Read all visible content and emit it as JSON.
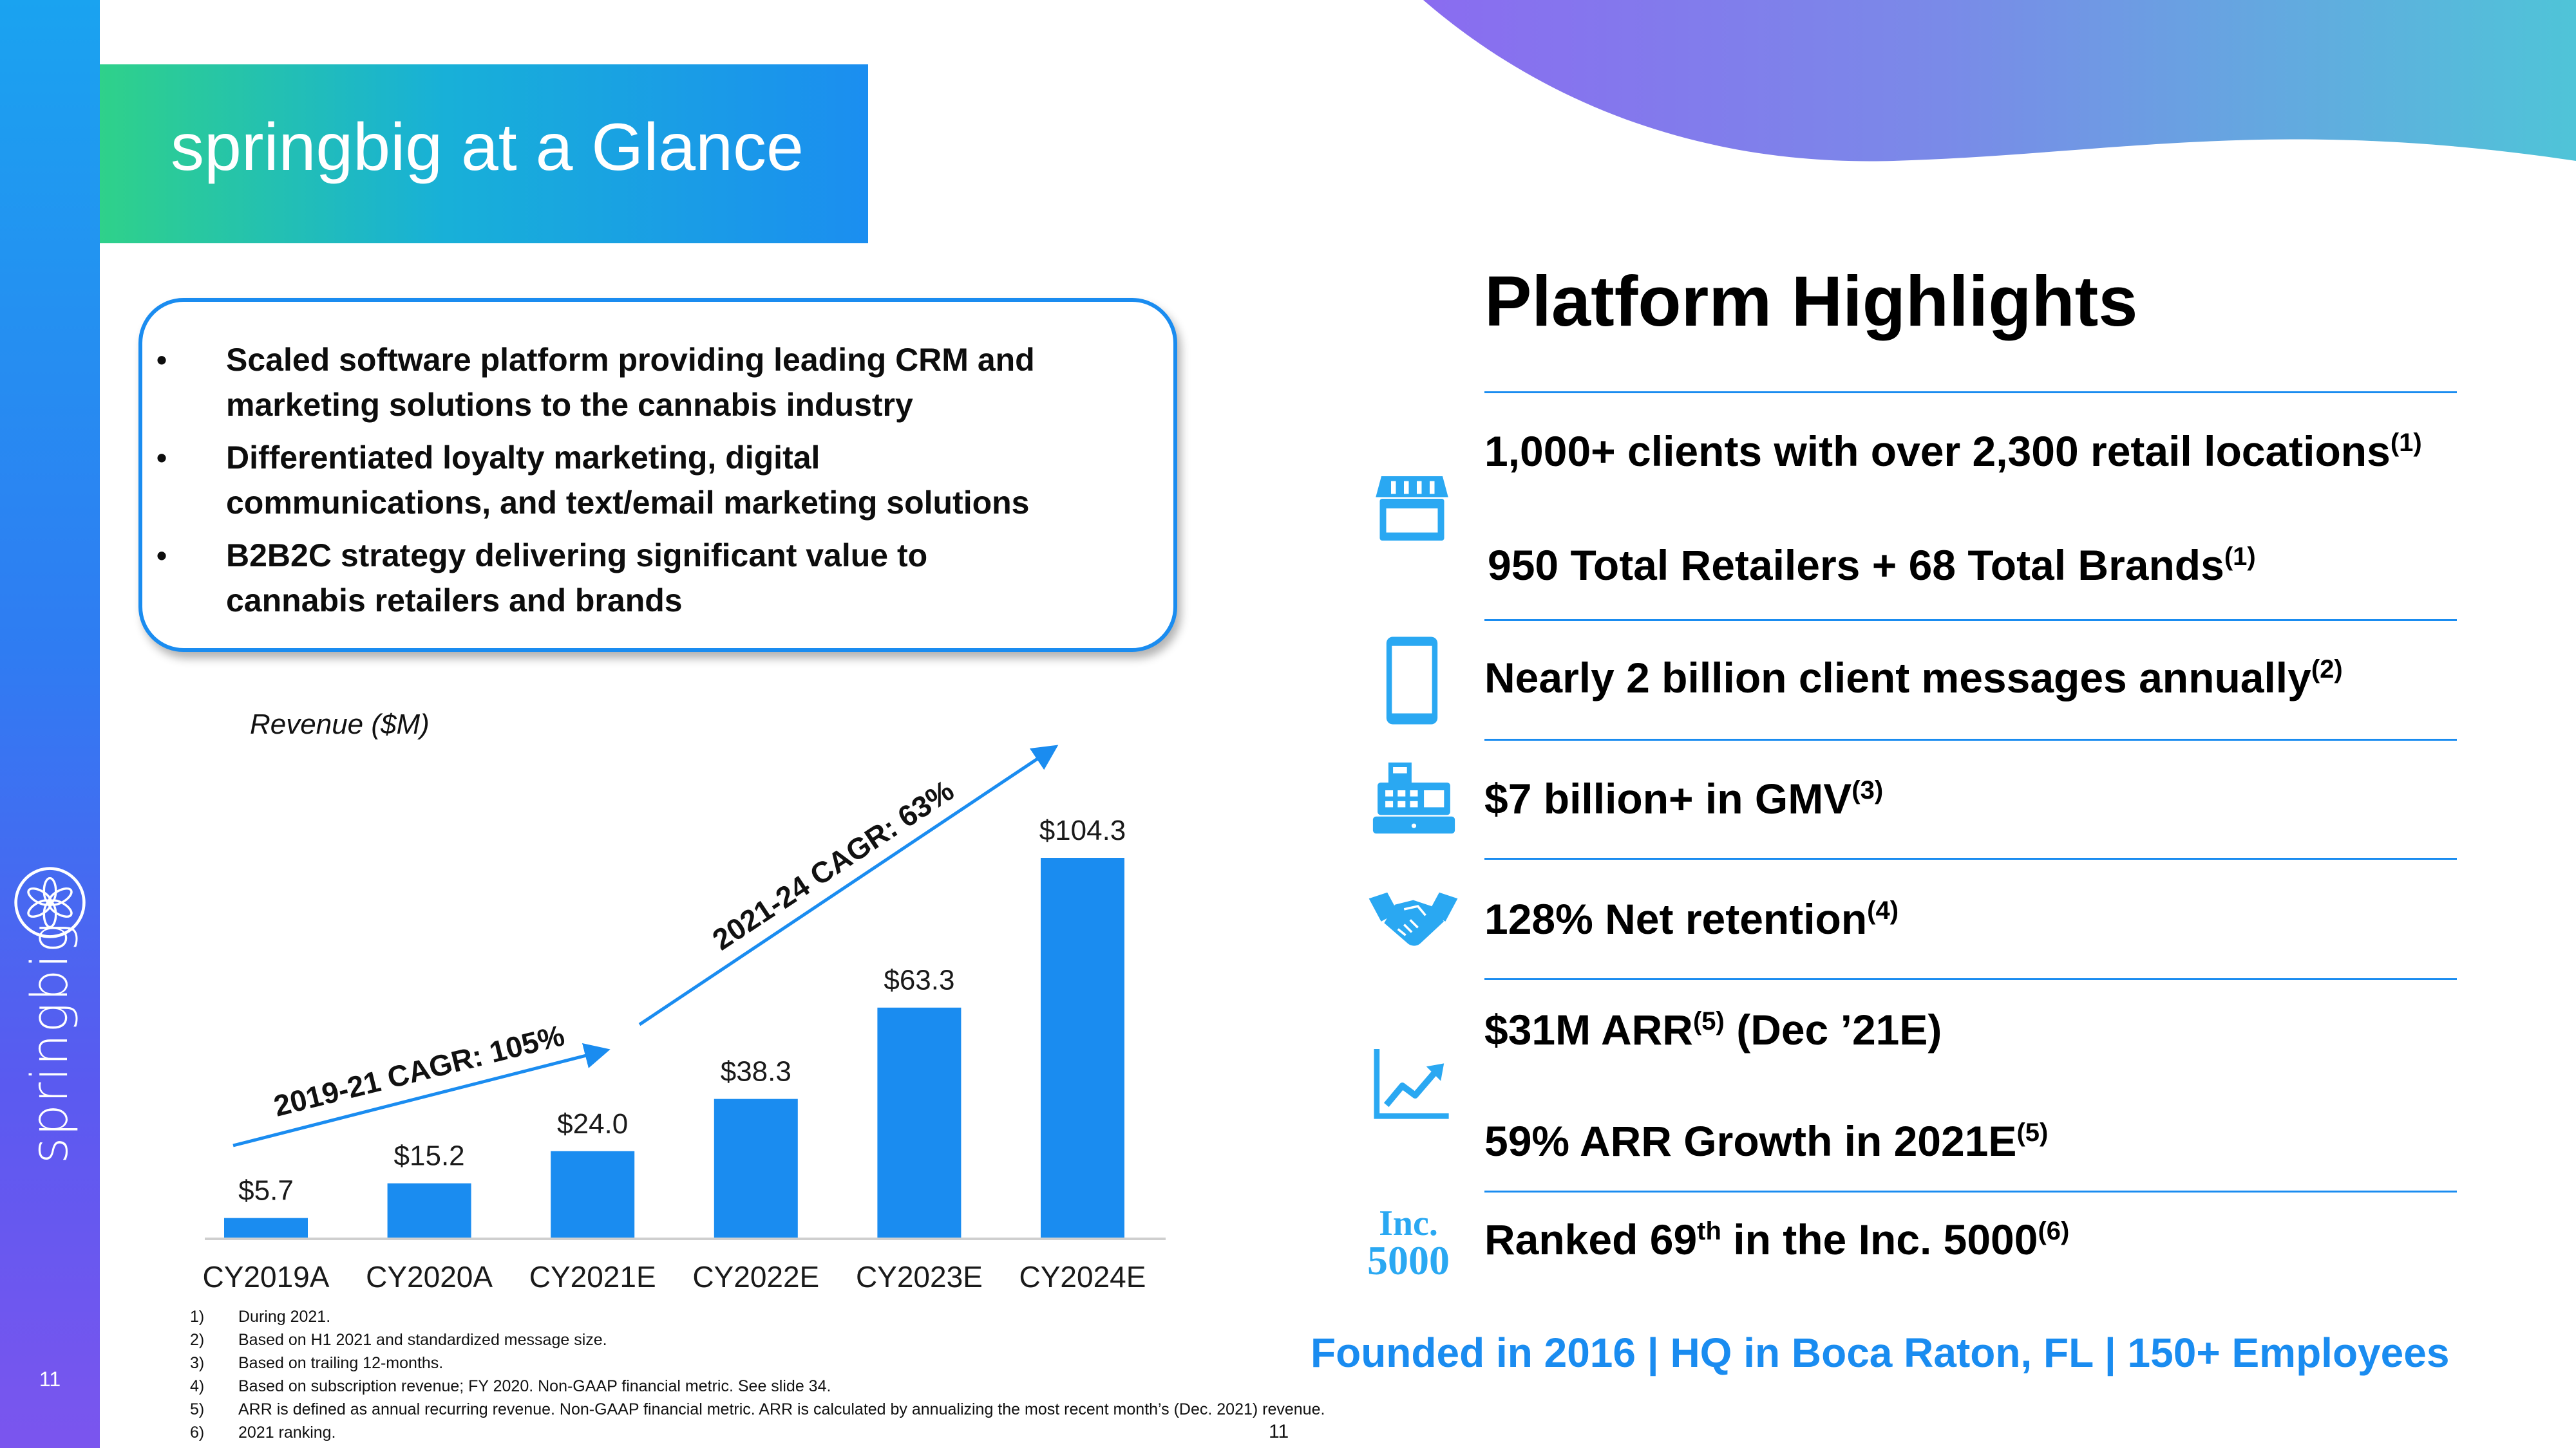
{
  "slide": {
    "title": "springbig at a Glance",
    "page_number": "11",
    "brand": "springbig",
    "colors": {
      "accent": "#1a8cf0",
      "green": "#2fd18a",
      "purple": "#7b55ee"
    }
  },
  "bullets": [
    {
      "line1": "Scaled software platform providing leading CRM and",
      "line2": "marketing solutions to the cannabis industry"
    },
    {
      "line1": "Differentiated loyalty marketing, digital",
      "line2": "communications, and text/email marketing solutions"
    },
    {
      "line1": "B2B2C strategy delivering significant value to",
      "line2": "cannabis retailers and brands"
    }
  ],
  "chart_data": {
    "type": "bar",
    "ylabel": "Revenue ($M)",
    "categories": [
      "CY2019A",
      "CY2020A",
      "CY2021E",
      "CY2022E",
      "CY2023E",
      "CY2024E"
    ],
    "values": [
      5.7,
      15.2,
      24.0,
      38.3,
      63.3,
      104.3
    ],
    "value_labels": [
      "$5.7",
      "$15.2",
      "$24.0",
      "$38.3",
      "$63.3",
      "$104.3"
    ],
    "color": "#1a8cf0",
    "annotations": [
      "2019-21 CAGR: 105%",
      "2021-24 CAGR: 63%"
    ]
  },
  "highlights": {
    "title": "Platform Highlights",
    "items": [
      {
        "text": "1,000+ clients with over 2,300 retail locations",
        "note": "(1)"
      },
      {
        "text": "950 Total Retailers + 68 Total Brands",
        "note": "(1)"
      },
      {
        "text": "Nearly 2 billion client messages annually",
        "note": "(2)"
      },
      {
        "text": "$7 billion+ in GMV",
        "note": "(3)"
      },
      {
        "text": "128% Net retention",
        "note": "(4)"
      },
      {
        "text": "$31M ARR",
        "note": "(5)",
        "suffix": " (Dec ’21E)"
      },
      {
        "text": "59% ARR Growth in 2021E",
        "note": "(5)"
      },
      {
        "text_pre": "Ranked 69",
        "text_sup": "th",
        "text_post": " in the Inc. 5000",
        "note": "(6)"
      }
    ],
    "inc_logo": {
      "line1": "Inc.",
      "line2": "5000"
    },
    "footer": "Founded in 2016 | HQ in Boca Raton, FL | 150+ Employees"
  },
  "footnotes": [
    {
      "num": "1)",
      "text": "During 2021."
    },
    {
      "num": "2)",
      "text": "Based on H1 2021 and standardized message size."
    },
    {
      "num": "3)",
      "text": "Based on trailing 12-months."
    },
    {
      "num": "4)",
      "text": "Based on subscription revenue; FY 2020. Non-GAAP financial metric. See slide 34."
    },
    {
      "num": "5)",
      "text": "ARR is defined as annual recurring revenue. Non-GAAP financial metric. ARR is calculated by annualizing the most recent month’s (Dec. 2021) revenue."
    },
    {
      "num": "6)",
      "text": "2021 ranking."
    }
  ],
  "icons": [
    "storefront-icon",
    "smartphone-icon",
    "cash-register-icon",
    "handshake-icon",
    "growth-chart-icon",
    "inc-5000-logo",
    "springbig-flower-logo"
  ]
}
